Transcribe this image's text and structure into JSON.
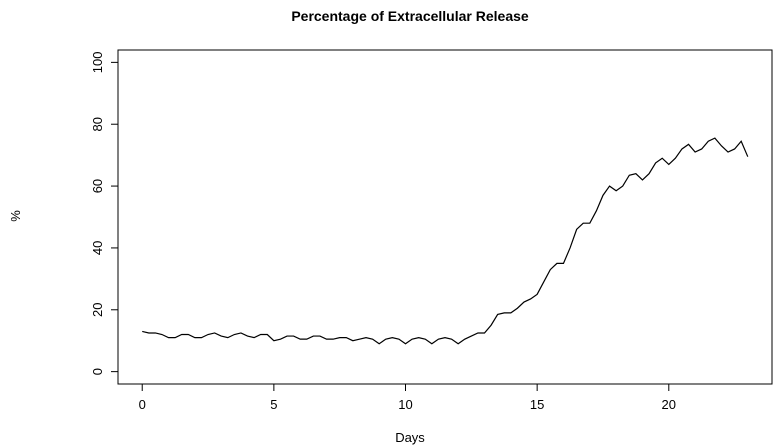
{
  "chart_data": {
    "type": "line",
    "title": "Percentage of Extracellular Release",
    "x_label": "Days",
    "y_label": "%",
    "x": [
      0,
      0.25,
      0.5,
      0.75,
      1,
      1.25,
      1.5,
      1.75,
      2,
      2.25,
      2.5,
      2.75,
      3,
      3.25,
      3.5,
      3.75,
      4,
      4.25,
      4.5,
      4.75,
      5,
      5.25,
      5.5,
      5.75,
      6,
      6.25,
      6.5,
      6.75,
      7,
      7.25,
      7.5,
      7.75,
      8,
      8.25,
      8.5,
      8.75,
      9,
      9.25,
      9.5,
      9.75,
      10,
      10.25,
      10.5,
      10.75,
      11,
      11.25,
      11.5,
      11.75,
      12,
      12.25,
      12.5,
      12.75,
      13,
      13.25,
      13.5,
      13.75,
      14,
      14.25,
      14.5,
      14.75,
      15,
      15.25,
      15.5,
      15.75,
      16,
      16.25,
      16.5,
      16.75,
      17,
      17.25,
      17.5,
      17.75,
      18,
      18.25,
      18.5,
      18.75,
      19,
      19.25,
      19.5,
      19.75,
      20,
      20.25,
      20.5,
      20.75,
      21,
      21.25,
      21.5,
      21.75,
      22,
      22.25,
      22.5,
      22.75,
      23
    ],
    "series": [
      {
        "color": "#000000",
        "values": [
          13,
          12.5,
          12.5,
          12,
          11,
          11,
          12,
          12,
          11,
          11,
          12,
          12.5,
          11.5,
          11,
          12,
          12.5,
          11.5,
          11,
          12,
          12,
          10,
          10.5,
          11.5,
          11.5,
          10.5,
          10.5,
          11.5,
          11.5,
          10.5,
          10.5,
          11,
          11,
          10,
          10.5,
          11,
          10.5,
          9,
          10.5,
          11,
          10.5,
          9,
          10.5,
          11,
          10.5,
          9,
          10.5,
          11,
          10.5,
          9,
          10.5,
          11.5,
          12.5,
          12.5,
          15,
          18.5,
          19,
          19,
          20.5,
          22.5,
          23.5,
          25,
          29,
          33,
          35,
          35,
          40,
          46,
          48,
          48,
          52,
          57,
          60,
          58.5,
          60,
          63.5,
          64,
          62,
          64,
          67.5,
          69,
          67,
          69,
          72,
          73.5,
          71,
          72,
          74.5,
          75.5,
          73,
          71,
          72,
          74.5,
          69.5
        ]
      }
    ],
    "xlim": [
      -0.92,
      23.92
    ],
    "xticks": [
      0,
      5,
      10,
      15,
      20
    ],
    "ylim": [
      -4,
      104
    ],
    "yticks": [
      0,
      20,
      40,
      60,
      80,
      100
    ]
  }
}
